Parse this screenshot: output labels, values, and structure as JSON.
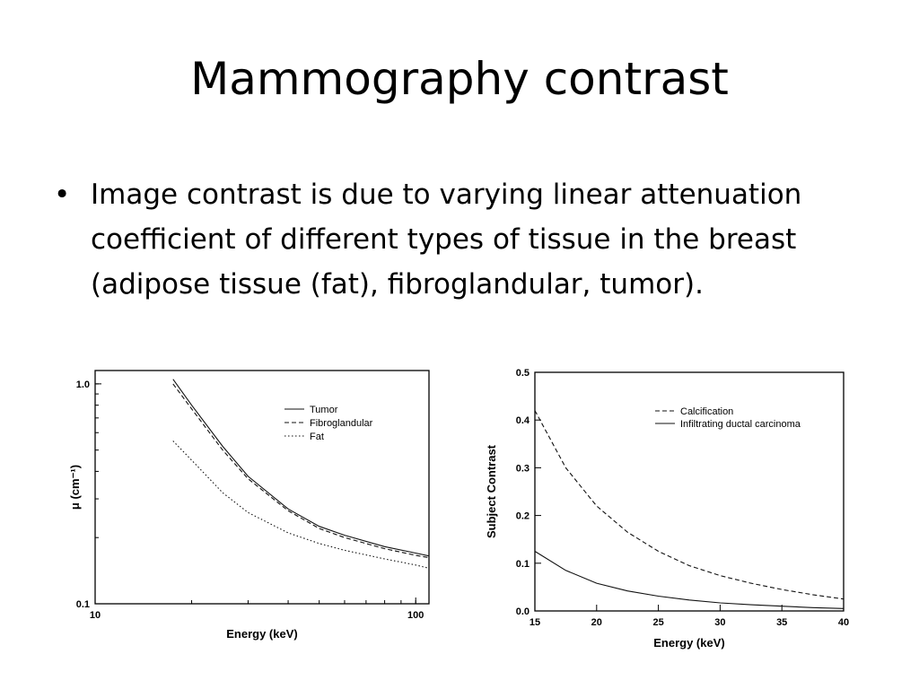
{
  "slide": {
    "title": "Mammography contrast",
    "bullet": "Image contrast is due to varying linear attenuation coefficient of different types of tissue in the breast (adipose tissue (fat), fibroglandular, tumor)."
  },
  "chart_data": [
    {
      "type": "line",
      "xlabel": "Energy (keV)",
      "ylabel": "μ (cm⁻¹)",
      "x_scale": "log",
      "y_scale": "log",
      "xlim": [
        10,
        110
      ],
      "ylim": [
        0.1,
        1.15
      ],
      "x_ticks": [
        10,
        100
      ],
      "y_ticks": [
        0.1,
        1.0
      ],
      "x_tick_labels": [
        "10",
        "100"
      ],
      "y_tick_labels": [
        "0.1",
        "1.0"
      ],
      "legend_position": "top-right",
      "series": [
        {
          "name": "Tumor",
          "style": "solid",
          "x": [
            17.5,
            20,
            25,
            30,
            40,
            50,
            60,
            80,
            100,
            110
          ],
          "y": [
            1.05,
            0.8,
            0.52,
            0.38,
            0.27,
            0.225,
            0.205,
            0.182,
            0.17,
            0.165
          ]
        },
        {
          "name": "Fibroglandular",
          "style": "dashed",
          "x": [
            17.5,
            20,
            25,
            30,
            40,
            50,
            60,
            80,
            100,
            110
          ],
          "y": [
            1.0,
            0.77,
            0.5,
            0.37,
            0.265,
            0.22,
            0.2,
            0.178,
            0.166,
            0.162
          ]
        },
        {
          "name": "Fat",
          "style": "dotted",
          "x": [
            17.5,
            20,
            25,
            30,
            40,
            50,
            60,
            80,
            100,
            110
          ],
          "y": [
            0.55,
            0.45,
            0.32,
            0.26,
            0.21,
            0.188,
            0.175,
            0.16,
            0.15,
            0.145
          ]
        }
      ]
    },
    {
      "type": "line",
      "xlabel": "Energy (keV)",
      "ylabel": "Subject Contrast",
      "xlim": [
        15,
        40
      ],
      "ylim": [
        0,
        0.5
      ],
      "x_ticks": [
        15,
        20,
        25,
        30,
        35,
        40
      ],
      "y_ticks": [
        0,
        0.1,
        0.2,
        0.3,
        0.4,
        0.5
      ],
      "x_tick_labels": [
        "15",
        "20",
        "25",
        "30",
        "35",
        "40"
      ],
      "y_tick_labels": [
        "0.0",
        "0.1",
        "0.2",
        "0.3",
        "0.4",
        "0.5"
      ],
      "legend_position": "top-right",
      "series": [
        {
          "name": "Calcification",
          "style": "dashed",
          "x": [
            15,
            17.5,
            20,
            22.5,
            25,
            27.5,
            30,
            32.5,
            35,
            37.5,
            40
          ],
          "y": [
            0.42,
            0.3,
            0.22,
            0.165,
            0.125,
            0.095,
            0.074,
            0.058,
            0.045,
            0.034,
            0.025
          ]
        },
        {
          "name": "Infiltrating ductal carcinoma",
          "style": "solid",
          "x": [
            15,
            17.5,
            20,
            22.5,
            25,
            27.5,
            30,
            32.5,
            35,
            37.5,
            40
          ],
          "y": [
            0.125,
            0.085,
            0.058,
            0.042,
            0.031,
            0.023,
            0.017,
            0.013,
            0.01,
            0.007,
            0.005
          ]
        }
      ]
    }
  ]
}
